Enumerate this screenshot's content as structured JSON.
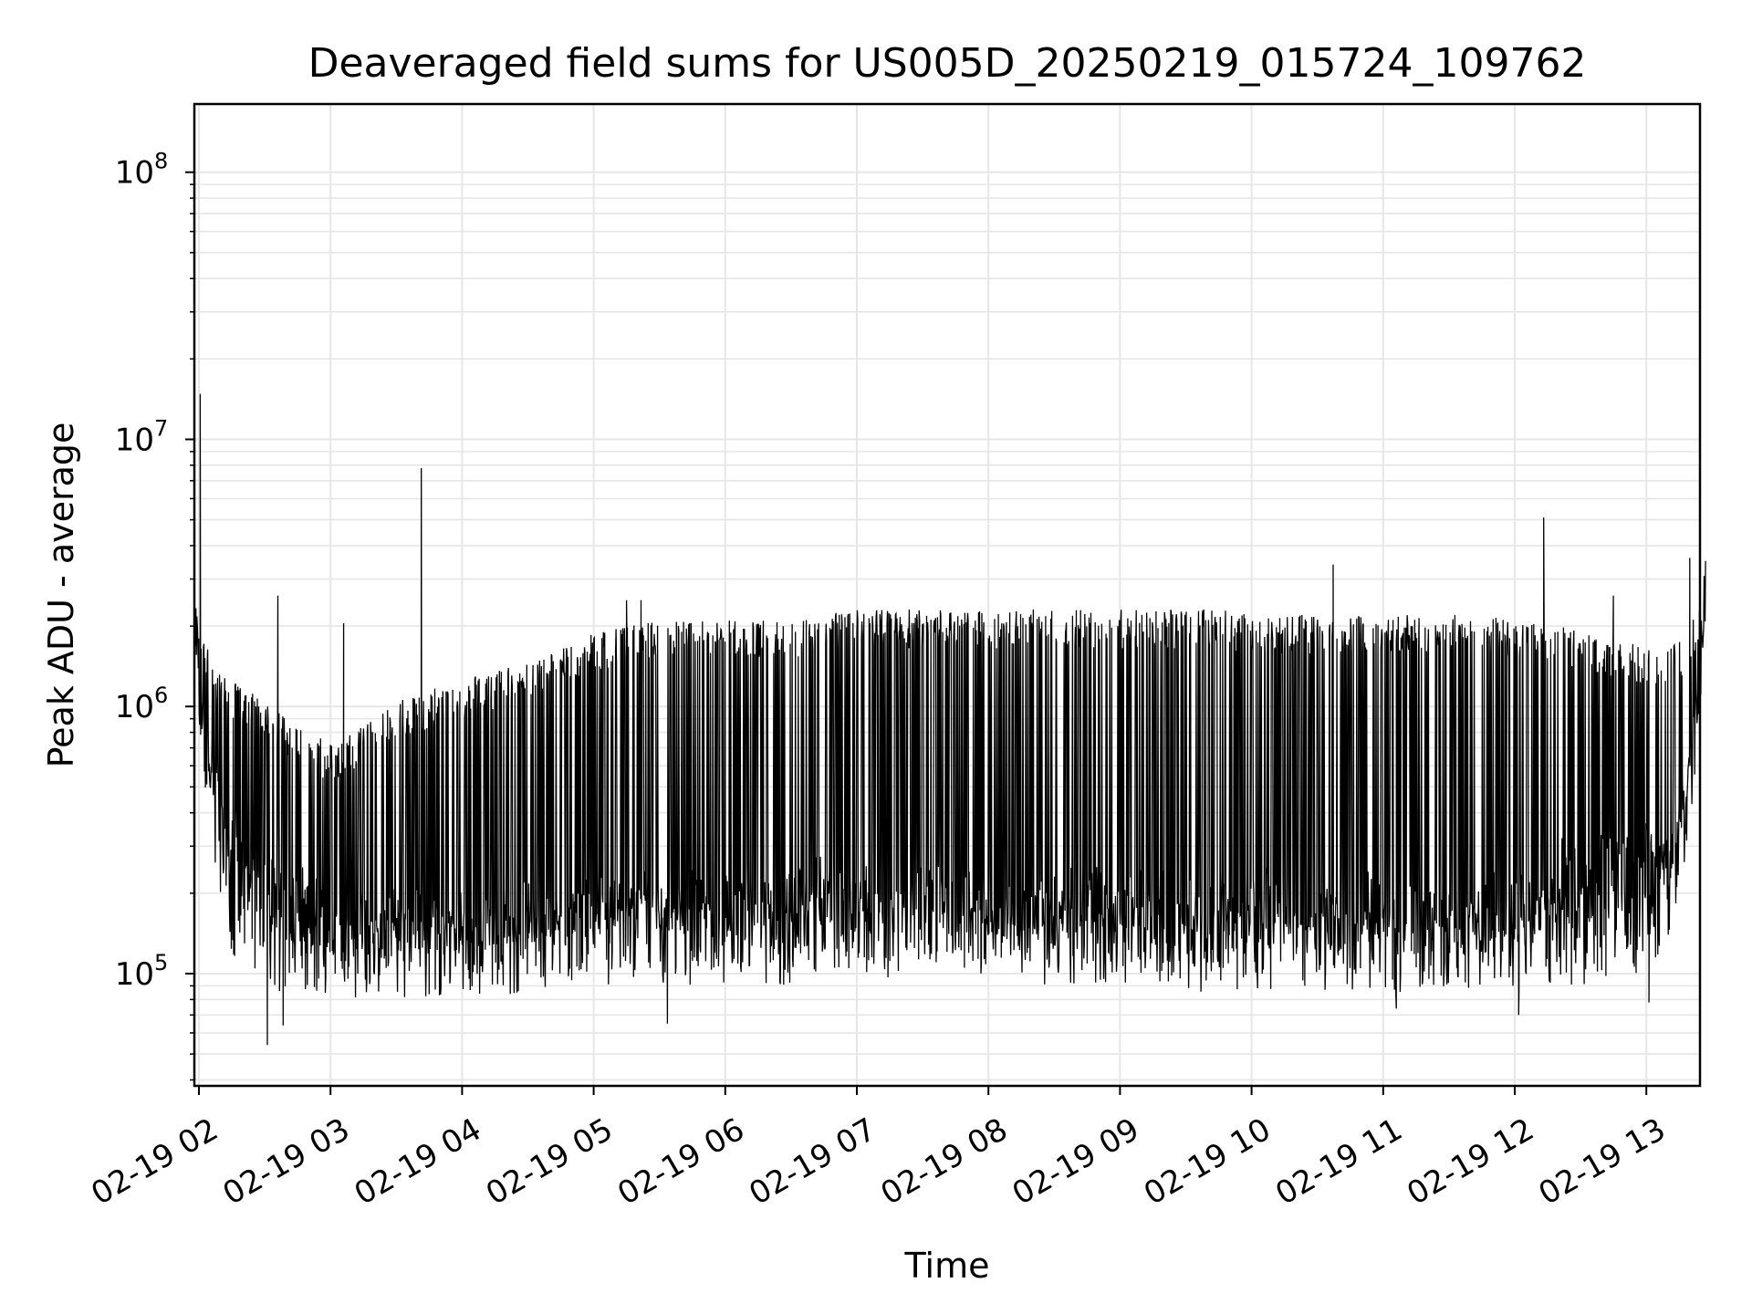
{
  "chart_data": {
    "type": "line",
    "title": "Deaveraged field sums for US005D_20250219_015724_109762",
    "xlabel": "Time",
    "ylabel": "Peak ADU - average",
    "yscale": "log",
    "ylim": [
      38000,
      180000000
    ],
    "xlim_hours": [
      1.97,
      13.45
    ],
    "x_ticks": [
      "02-19 02",
      "02-19 03",
      "02-19 04",
      "02-19 05",
      "02-19 06",
      "02-19 07",
      "02-19 08",
      "02-19 09",
      "02-19 10",
      "02-19 11",
      "02-19 12",
      "02-19 13"
    ],
    "y_ticks": [
      {
        "base": "10",
        "exp": "5",
        "value": 100000
      },
      {
        "base": "10",
        "exp": "6",
        "value": 1000000
      },
      {
        "base": "10",
        "exp": "7",
        "value": 10000000
      },
      {
        "base": "10",
        "exp": "8",
        "value": 100000000
      }
    ],
    "grid": true,
    "line_color": "#000000",
    "grid_color": "#e6e6e6",
    "series": [
      {
        "x_hours": [
          1.97,
          2.0,
          2.1,
          2.25,
          2.5,
          2.75,
          3.0,
          3.25,
          3.5,
          3.75,
          4.0,
          4.25,
          4.5,
          4.75,
          5.0,
          5.25,
          5.5,
          5.75,
          6.0,
          6.25,
          6.5,
          6.75,
          7.0,
          7.25,
          7.5,
          7.75,
          8.0,
          8.25,
          8.5,
          8.75,
          9.0,
          9.25,
          9.5,
          9.75,
          10.0,
          10.25,
          10.5,
          10.75,
          11.0,
          11.25,
          11.5,
          11.75,
          12.0,
          12.25,
          12.5,
          12.75,
          13.0,
          13.2,
          13.3,
          13.4,
          13.45
        ],
        "floor": [
          1200000,
          900000,
          600000,
          300000,
          220000,
          170000,
          140000,
          130000,
          140000,
          145000,
          130000,
          140000,
          145000,
          150000,
          160000,
          170000,
          165000,
          170000,
          170000,
          175000,
          165000,
          180000,
          175000,
          170000,
          175000,
          170000,
          180000,
          165000,
          170000,
          175000,
          170000,
          165000,
          160000,
          165000,
          160000,
          165000,
          160000,
          160000,
          160000,
          165000,
          160000,
          165000,
          170000,
          190000,
          220000,
          240000,
          260000,
          300000,
          500000,
          1000000,
          2500000
        ],
        "ceiling": [
          2400000,
          2000000,
          1500000,
          1200000,
          1000000,
          800000,
          700000,
          800000,
          1000000,
          1100000,
          1200000,
          1300000,
          1400000,
          1600000,
          1800000,
          1900000,
          2000000,
          2000000,
          2000000,
          2000000,
          2000000,
          2100000,
          2200000,
          2200000,
          2200000,
          2200000,
          2200000,
          2200000,
          2200000,
          2200000,
          2200000,
          2200000,
          2200000,
          2200000,
          2100000,
          2100000,
          2100000,
          2100000,
          2100000,
          2100000,
          2100000,
          2100000,
          2000000,
          2000000,
          1800000,
          1700000,
          1600000,
          1600000,
          1800000,
          2300000,
          2600000
        ],
        "min_dip": [
          1500000,
          800000,
          300000,
          120000,
          90000,
          90000,
          90000,
          90000,
          90000,
          90000,
          90000,
          90000,
          95000,
          95000,
          100000,
          100000,
          100000,
          100000,
          100000,
          100000,
          100000,
          110000,
          110000,
          105000,
          110000,
          110000,
          110000,
          100000,
          100000,
          100000,
          95000,
          95000,
          95000,
          95000,
          95000,
          95000,
          95000,
          95000,
          90000,
          95000,
          95000,
          95000,
          95000,
          100000,
          100000,
          100000,
          110000,
          150000,
          300000,
          800000,
          2400000
        ],
        "spikes": [
          {
            "x": 2.01,
            "y": 14800000
          },
          {
            "x": 2.6,
            "y": 2600000
          },
          {
            "x": 3.1,
            "y": 2050000
          },
          {
            "x": 3.69,
            "y": 7800000
          },
          {
            "x": 5.25,
            "y": 2500000
          },
          {
            "x": 5.36,
            "y": 2500000
          },
          {
            "x": 10.62,
            "y": 3400000
          },
          {
            "x": 12.22,
            "y": 5100000
          },
          {
            "x": 12.75,
            "y": 2600000
          },
          {
            "x": 13.33,
            "y": 3600000
          }
        ],
        "dips": [
          {
            "x": 2.52,
            "y": 54000
          },
          {
            "x": 2.64,
            "y": 64000
          },
          {
            "x": 5.56,
            "y": 65000
          },
          {
            "x": 11.1,
            "y": 74000
          },
          {
            "x": 12.03,
            "y": 70000
          },
          {
            "x": 13.02,
            "y": 78000
          }
        ]
      }
    ]
  }
}
